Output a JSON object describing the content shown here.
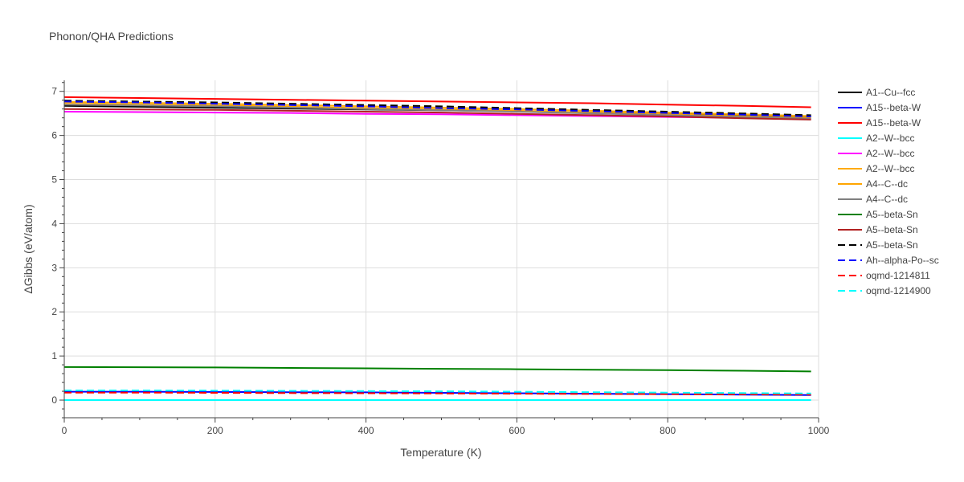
{
  "chart_data": {
    "type": "line",
    "title": "Phonon/QHA Predictions",
    "xlabel": "Temperature (K)",
    "ylabel": "ΔGibbs (eV/atom)",
    "xlim": [
      0,
      1000
    ],
    "ylim": [
      -0.4,
      7.25
    ],
    "x_ticks": [
      0,
      200,
      400,
      600,
      800,
      1000
    ],
    "y_ticks": [
      0,
      1,
      2,
      3,
      4,
      5,
      6,
      7
    ],
    "grid": true,
    "legend_position": "right",
    "x": [
      0,
      100,
      200,
      300,
      400,
      500,
      600,
      700,
      800,
      900,
      990
    ],
    "series": [
      {
        "name": "A1--Cu--fcc",
        "color": "#000000",
        "dash": "solid",
        "values": [
          6.67,
          6.65,
          6.63,
          6.61,
          6.59,
          6.57,
          6.55,
          6.52,
          6.49,
          6.46,
          6.43
        ]
      },
      {
        "name": "A15--beta-W",
        "color": "#0000ff",
        "dash": "solid",
        "values": [
          0.19,
          0.19,
          0.185,
          0.18,
          0.175,
          0.165,
          0.155,
          0.145,
          0.135,
          0.125,
          0.115
        ]
      },
      {
        "name": "A15--beta-W",
        "color": "#ff0000",
        "dash": "solid",
        "values": [
          6.87,
          6.85,
          6.83,
          6.81,
          6.79,
          6.77,
          6.75,
          6.73,
          6.7,
          6.67,
          6.64
        ]
      },
      {
        "name": "A2--W--bcc",
        "color": "#00ffff",
        "dash": "solid",
        "values": [
          0,
          0,
          0,
          0,
          0,
          0,
          0,
          0,
          0,
          0,
          0
        ]
      },
      {
        "name": "A2--W--bcc",
        "color": "#ff00ff",
        "dash": "solid",
        "values": [
          6.54,
          6.53,
          6.52,
          6.51,
          6.49,
          6.48,
          6.46,
          6.44,
          6.42,
          6.4,
          6.38
        ]
      },
      {
        "name": "A2--W--bcc",
        "color": "#ffaa00",
        "dash": "solid",
        "values": [
          6.76,
          6.74,
          6.72,
          6.69,
          6.66,
          6.63,
          6.6,
          6.56,
          6.52,
          6.48,
          6.44
        ]
      },
      {
        "name": "A4--C--dc",
        "color": "#ffa500",
        "dash": "solid",
        "values": [
          6.72,
          6.7,
          6.68,
          6.65,
          6.62,
          6.59,
          6.56,
          6.52,
          6.48,
          6.44,
          6.4
        ]
      },
      {
        "name": "A4--C--dc",
        "color": "#808080",
        "dash": "solid",
        "values": [
          6.7,
          6.68,
          6.66,
          6.63,
          6.6,
          6.57,
          6.54,
          6.5,
          6.46,
          6.42,
          6.38
        ]
      },
      {
        "name": "A5--beta-Sn",
        "color": "#008000",
        "dash": "solid",
        "values": [
          0.75,
          0.745,
          0.74,
          0.73,
          0.72,
          0.71,
          0.7,
          0.69,
          0.68,
          0.665,
          0.65
        ]
      },
      {
        "name": "A5--beta-Sn",
        "color": "#b22222",
        "dash": "solid",
        "values": [
          6.6,
          6.59,
          6.58,
          6.56,
          6.54,
          6.52,
          6.49,
          6.46,
          6.43,
          6.39,
          6.36
        ]
      },
      {
        "name": "A5--beta-Sn",
        "color": "#000000",
        "dash": "dash",
        "values": [
          6.79,
          6.77,
          6.75,
          6.72,
          6.69,
          6.66,
          6.62,
          6.58,
          6.54,
          6.5,
          6.46
        ]
      },
      {
        "name": "Ah--alpha-Po--sc",
        "color": "#0000ff",
        "dash": "dash",
        "values": [
          6.77,
          6.75,
          6.72,
          6.69,
          6.66,
          6.62,
          6.59,
          6.55,
          6.51,
          6.47,
          6.43
        ]
      },
      {
        "name": "oqmd-1214811",
        "color": "#ff0000",
        "dash": "dash",
        "values": [
          0.17,
          0.17,
          0.165,
          0.16,
          0.155,
          0.15,
          0.145,
          0.14,
          0.135,
          0.13,
          0.125
        ]
      },
      {
        "name": "oqmd-1214900",
        "color": "#00ffff",
        "dash": "dash",
        "values": [
          0.22,
          0.22,
          0.215,
          0.21,
          0.205,
          0.2,
          0.19,
          0.18,
          0.17,
          0.16,
          0.15
        ]
      }
    ]
  }
}
